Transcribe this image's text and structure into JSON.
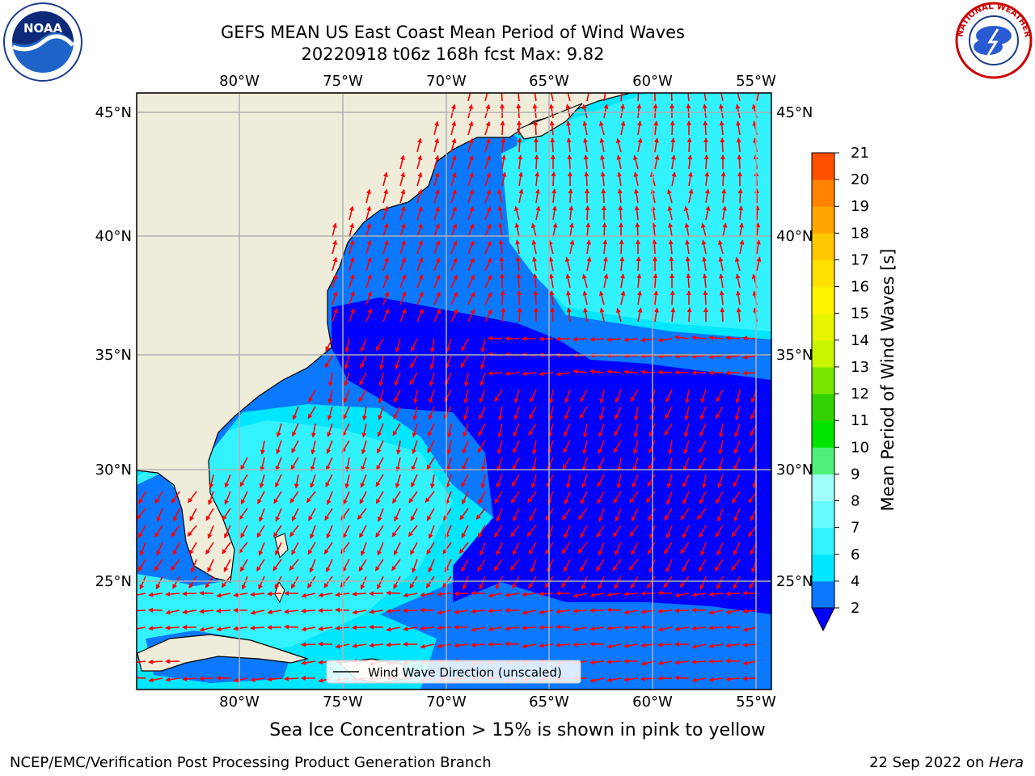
{
  "title": {
    "line1": "GEFS MEAN US East Coast Mean Period of Wind Waves",
    "line2": "20220918 t06z 168h fcst   Max: 9.82"
  },
  "subtitle": "Sea Ice Concentration > 15% is shown in pink to yellow",
  "footer": {
    "credit": "NCEP/EMC/Verification Post Processing Product Generation Branch",
    "date": "22 Sep 2022 on ",
    "machine": "Hera"
  },
  "logos": {
    "left": {
      "icon": "noaa-logo",
      "text": "NOAA"
    },
    "right": {
      "icon": "nws-logo",
      "text": "NATIONAL WEATHER SERVICE"
    }
  },
  "map": {
    "lon_labels": [
      "80°W",
      "75°W",
      "70°W",
      "65°W",
      "60°W",
      "55°W"
    ],
    "lat_labels": [
      "45°N",
      "40°N",
      "35°N",
      "30°N",
      "25°N"
    ],
    "legend_label": "Wind Wave Direction (unscaled)",
    "arrow_color": "#ff0000",
    "land_color": "#efedda"
  },
  "colorbar": {
    "label": "Mean Period of Wind Waves [s]",
    "ticks": [
      "2",
      "4",
      "6",
      "7",
      "8",
      "9",
      "10",
      "11",
      "12",
      "13",
      "14",
      "15",
      "16",
      "17",
      "18",
      "19",
      "20",
      "21"
    ],
    "colors": [
      "#0a78ff",
      "#00e6ff",
      "#33f2ff",
      "#66faff",
      "#a0fffa",
      "#50f078",
      "#00e600",
      "#32d200",
      "#78e600",
      "#c8f500",
      "#e6f500",
      "#fff500",
      "#ffe100",
      "#ffc800",
      "#ffa500",
      "#ff8200",
      "#ff5000",
      "#ff1e00",
      "#ff0000"
    ],
    "under_color": "#0000ff"
  }
}
